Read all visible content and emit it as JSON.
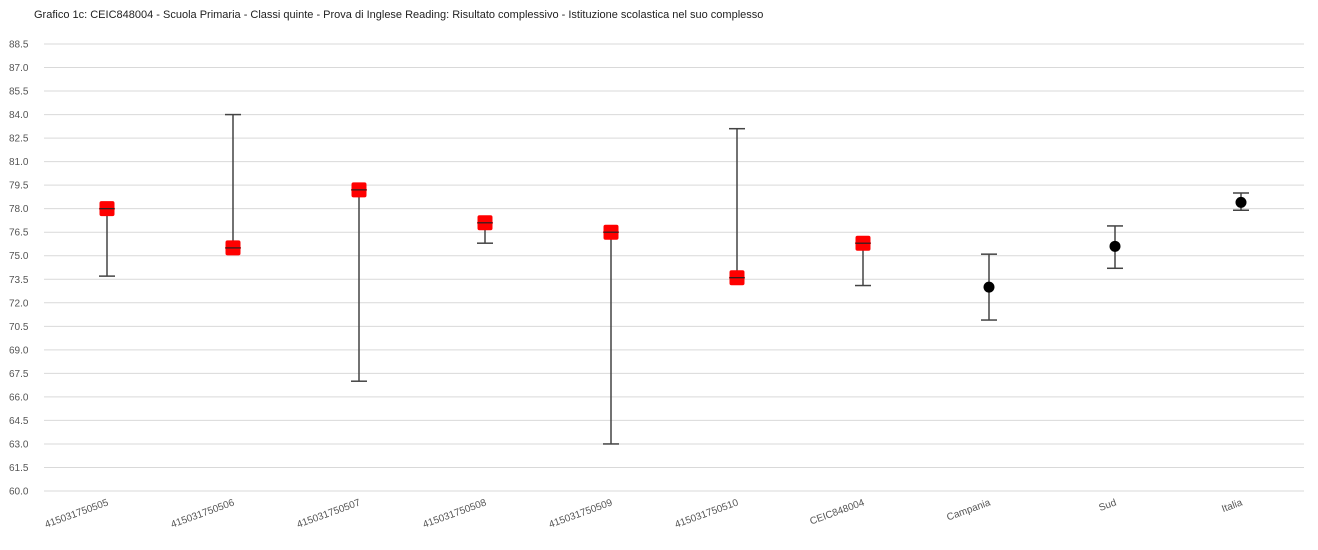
{
  "chart_data": {
    "type": "scatter",
    "title": "Grafico 1c: CEIC848004 - Scuola Primaria - Classi quinte - Prova di Inglese Reading: Risultato complessivo - Istituzione scolastica nel suo complesso",
    "xlabel": "",
    "ylabel": "",
    "ylim": [
      60.0,
      88.5
    ],
    "yticks": [
      "88.5",
      "87.0",
      "85.5",
      "84.0",
      "82.5",
      "81.0",
      "79.5",
      "78.0",
      "76.5",
      "75.0",
      "73.5",
      "72.0",
      "70.5",
      "69.0",
      "67.5",
      "66.0",
      "64.5",
      "63.0",
      "61.5",
      "60.0"
    ],
    "grid": true,
    "categories": [
      "415031750505",
      "415031750506",
      "415031750507",
      "415031750508",
      "415031750509",
      "415031750510",
      "CEIC848004",
      "Campania",
      "Sud",
      "Italia"
    ],
    "points": [
      {
        "category": "415031750505",
        "value": 78.0,
        "low": 73.7,
        "high": 78.0,
        "marker": "square",
        "color": "#ff0000"
      },
      {
        "category": "415031750506",
        "value": 75.5,
        "low": 75.5,
        "high": 84.0,
        "marker": "square",
        "color": "#ff0000"
      },
      {
        "category": "415031750507",
        "value": 79.2,
        "low": 67.0,
        "high": 79.2,
        "marker": "square",
        "color": "#ff0000"
      },
      {
        "category": "415031750508",
        "value": 77.1,
        "low": 75.8,
        "high": 77.1,
        "marker": "square",
        "color": "#ff0000"
      },
      {
        "category": "415031750509",
        "value": 76.5,
        "low": 63.0,
        "high": 76.5,
        "marker": "square",
        "color": "#ff0000"
      },
      {
        "category": "415031750510",
        "value": 73.6,
        "low": 73.6,
        "high": 83.1,
        "marker": "square",
        "color": "#ff0000"
      },
      {
        "category": "CEIC848004",
        "value": 75.8,
        "low": 73.1,
        "high": 75.8,
        "marker": "square",
        "color": "#ff0000"
      },
      {
        "category": "Campania",
        "value": 73.0,
        "low": 70.9,
        "high": 75.1,
        "marker": "circle",
        "color": "#000000"
      },
      {
        "category": "Sud",
        "value": 75.6,
        "low": 74.2,
        "high": 76.9,
        "marker": "circle",
        "color": "#000000"
      },
      {
        "category": "Italia",
        "value": 78.4,
        "low": 77.9,
        "high": 79.0,
        "marker": "circle",
        "color": "#000000"
      }
    ]
  }
}
